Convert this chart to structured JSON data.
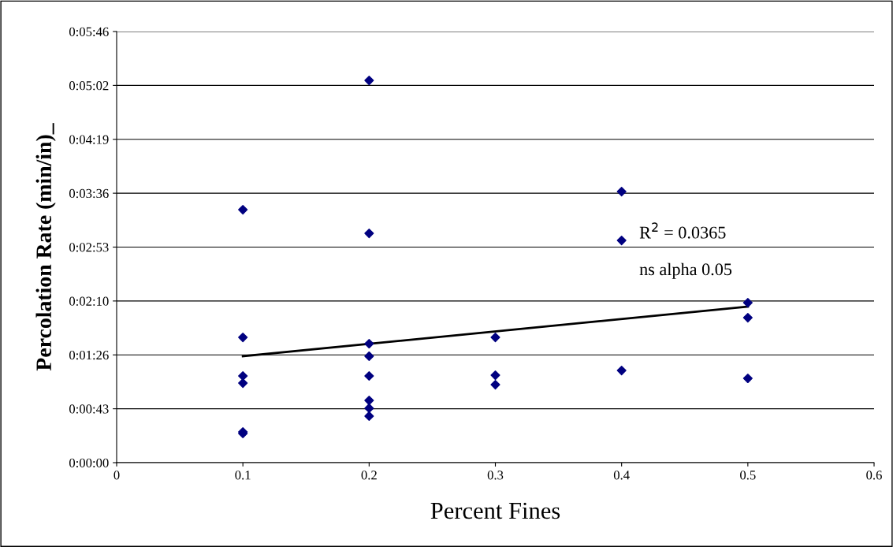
{
  "chart_data": {
    "type": "scatter",
    "xlabel": "Percent Fines",
    "ylabel": "Percolation Rate (min/in)_",
    "xlim": [
      0,
      0.6
    ],
    "xticks": [
      0,
      0.1,
      0.2,
      0.3,
      0.4,
      0.5,
      0.6
    ],
    "ylim": [
      0,
      345.6
    ],
    "yticks": [
      {
        "value": 0,
        "label": "0:00:00"
      },
      {
        "value": 43.2,
        "label": "0:00:43"
      },
      {
        "value": 86.4,
        "label": "0:01:26"
      },
      {
        "value": 129.6,
        "label": "0:02:10"
      },
      {
        "value": 172.8,
        "label": "0:02:53"
      },
      {
        "value": 216,
        "label": "0:03:36"
      },
      {
        "value": 259.2,
        "label": "0:04:19"
      },
      {
        "value": 302.4,
        "label": "0:05:02"
      },
      {
        "value": 345.6,
        "label": "0:05:46"
      }
    ],
    "grid": "y",
    "series": [
      {
        "marker": "diamond",
        "color": "#000080",
        "x": [
          0.1,
          0.1,
          0.1,
          0.1,
          0.1,
          0.1,
          0.2,
          0.2,
          0.2,
          0.2,
          0.2,
          0.2,
          0.2,
          0.2,
          0.3,
          0.3,
          0.3,
          0.4,
          0.4,
          0.4,
          0.5,
          0.5,
          0.5
        ],
        "values": [
          202.8,
          100.4,
          69.5,
          63.8,
          24.6,
          23.4,
          306.4,
          183.8,
          95.4,
          85.3,
          69.5,
          49.9,
          43.6,
          37.3,
          100.4,
          70.1,
          62.5,
          217.3,
          178.1,
          73.9,
          128.2,
          116.2,
          67.6
        ]
      },
      {
        "type": "line",
        "marker": "none",
        "color": "#000000",
        "x": [
          0.1,
          0.5
        ],
        "values": [
          85.3,
          125.1
        ]
      }
    ],
    "annotations": [
      "R$^{2}$ = 0.0365",
      "ns alpha 0.05"
    ]
  }
}
